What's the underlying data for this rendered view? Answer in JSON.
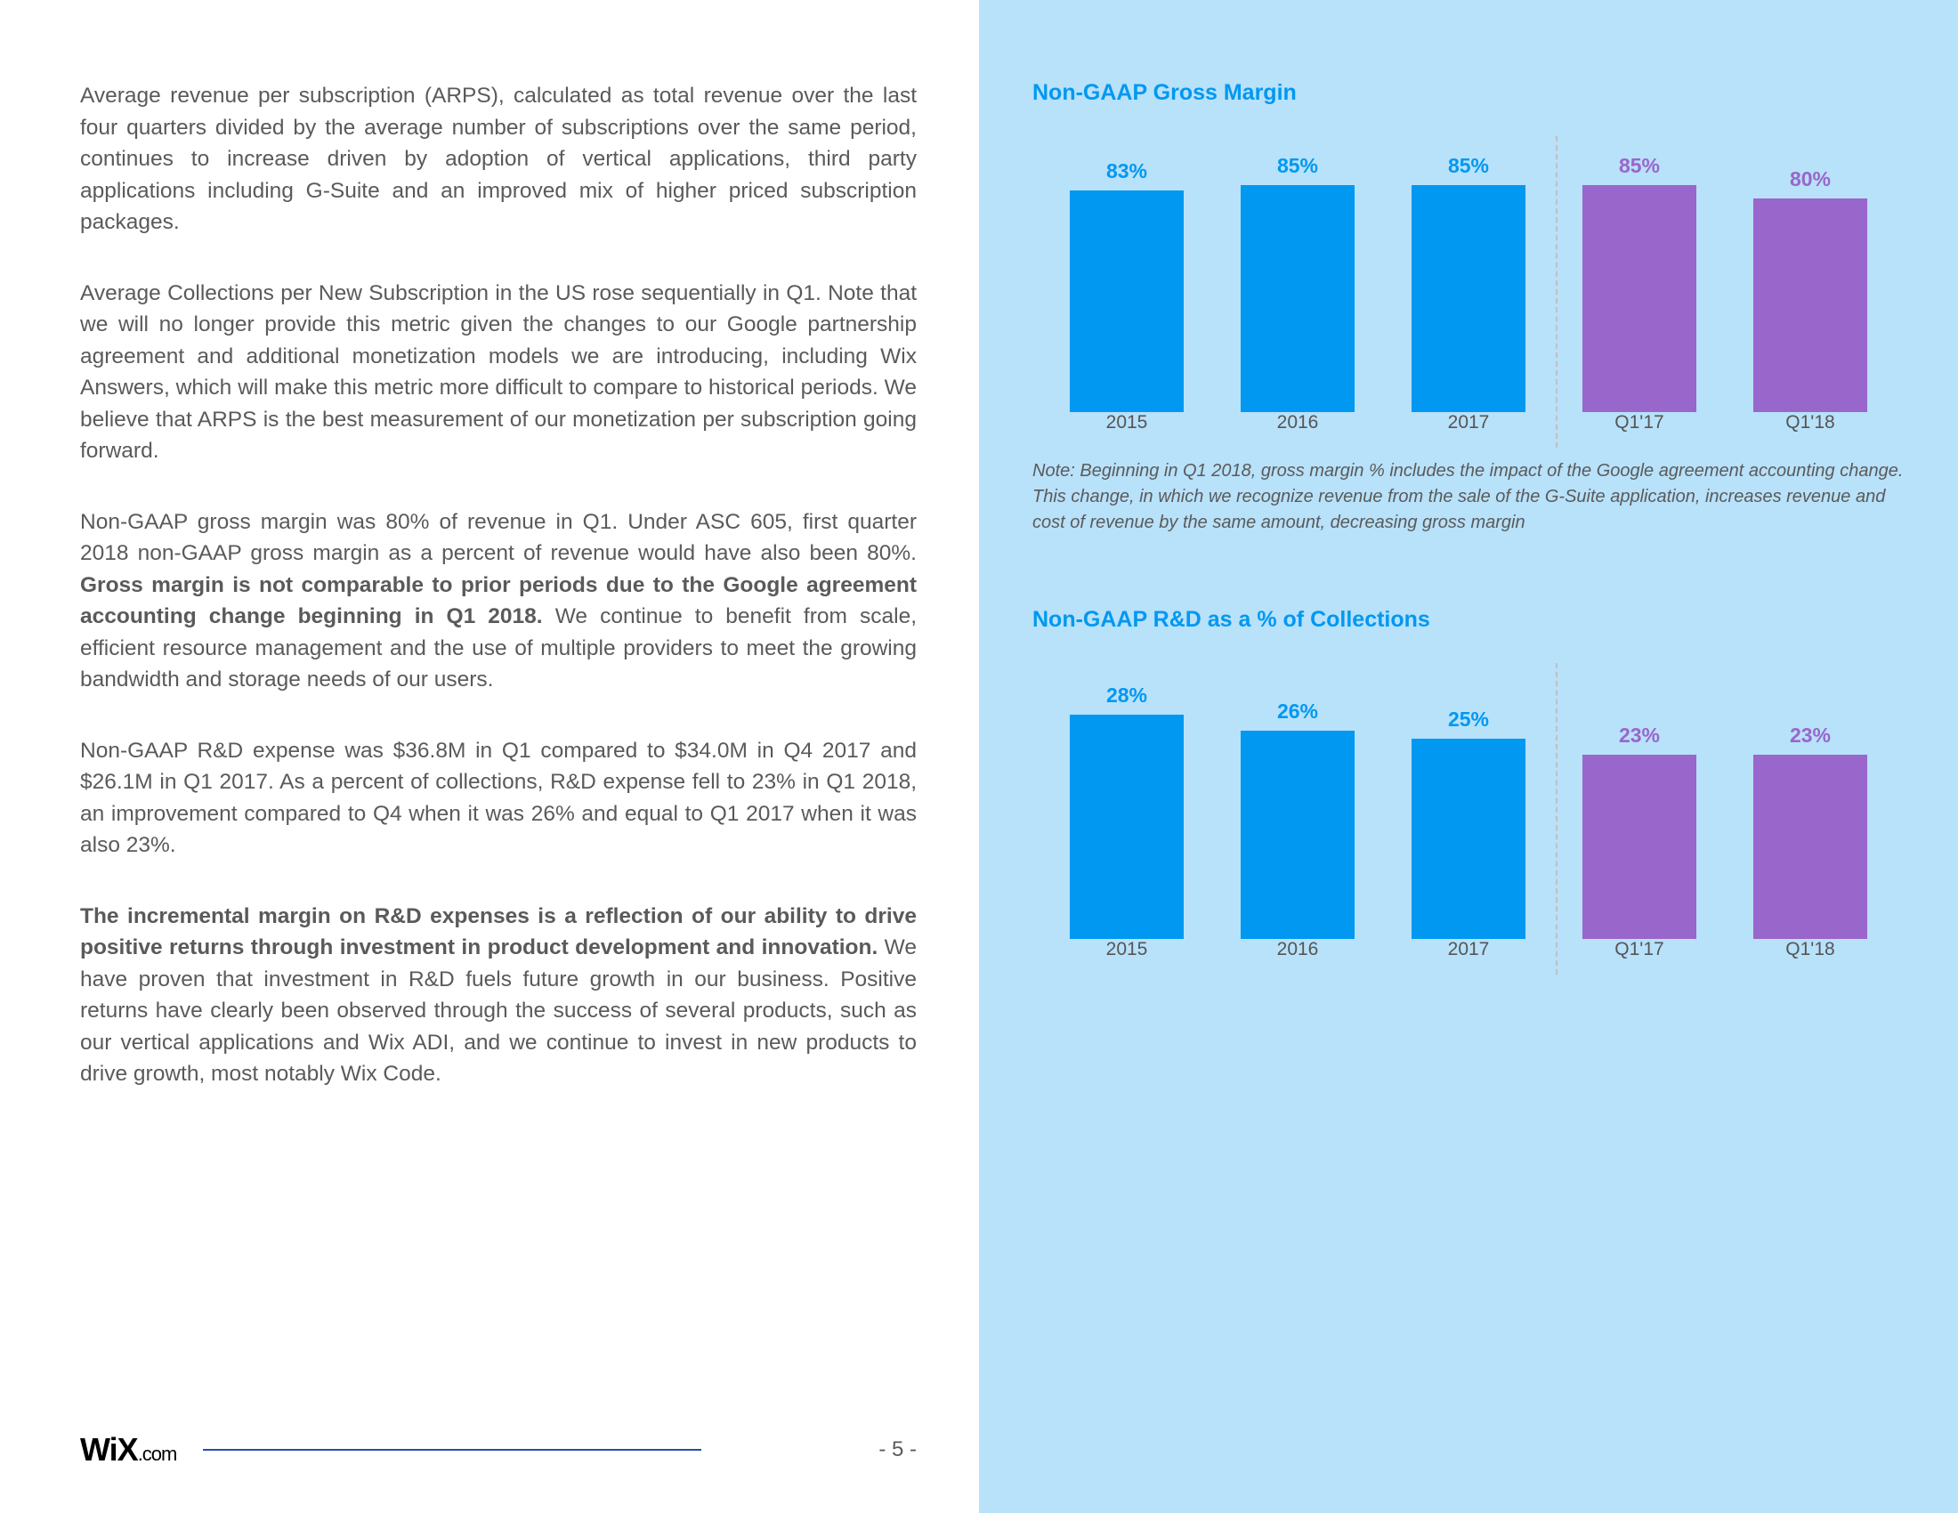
{
  "page": {
    "number": "- 5 -",
    "logo_main": "WiX",
    "logo_suffix": ".com"
  },
  "right_panel_bg": "#b8e1fa",
  "body": {
    "p1": "Average revenue per subscription (ARPS), calculated as total revenue over the last four quarters divided by the average number of subscriptions over the same period, continues to increase driven by adoption of vertical applications, third party applications including G-Suite and an improved mix of higher priced subscription packages.",
    "p2": "Average Collections per New Subscription in the US rose sequentially in Q1. Note that we will no longer provide this metric given the changes to our Google partnership agreement and additional monetization models we are introducing, including Wix Answers, which will make this metric more difficult to compare to historical periods. We believe that ARPS is the best measurement of our monetization per subscription going forward.",
    "p3_a": "Non-GAAP gross margin was 80% of revenue in Q1. Under ASC 605, first quarter 2018 non-GAAP gross margin as a percent of revenue would have also been 80%. ",
    "p3_b": "Gross margin is not comparable to prior periods due to the Google agreement accounting change beginning in Q1 2018.",
    "p3_c": " We continue to benefit from scale, efficient resource management and the use of multiple providers to meet the growing bandwidth and storage needs of our users.",
    "p4": "Non-GAAP R&D expense was $36.8M in Q1 compared to $34.0M in Q4 2017 and $26.1M in Q1 2017. As a percent of collections, R&D expense fell to 23% in Q1 2018, an improvement compared to Q4 when it was 26% and equal to Q1 2017 when it was also 23%.",
    "p5_a": "The incremental margin on R&D expenses is a reflection of our ability to drive positive returns through investment in product development and innovation.",
    "p5_b": " We have proven that investment in R&D fuels future growth in our business. Positive returns have clearly been observed through the success of several products, such as our vertical applications and Wix ADI, and we continue to invest in new products to drive growth, most notably Wix Code."
  },
  "chart1": {
    "type": "bar",
    "title": "Non-GAAP Gross Margin",
    "title_color": "#0098f1",
    "categories": [
      "2015",
      "2016",
      "2017",
      "Q1'17",
      "Q1'18"
    ],
    "labels": [
      "83%",
      "85%",
      "85%",
      "85%",
      "80%"
    ],
    "values": [
      83,
      85,
      85,
      85,
      80
    ],
    "bar_colors": [
      "#0098f1",
      "#0098f1",
      "#0098f1",
      "#9966cc",
      "#9966cc"
    ],
    "label_colors": [
      "#0098f1",
      "#0098f1",
      "#0098f1",
      "#9966cc",
      "#9966cc"
    ],
    "y_max": 90,
    "divider_after_index": 3,
    "note": "Note: Beginning in Q1 2018, gross margin % includes the impact of the Google agreement accounting change. This change, in which we recognize revenue from the sale of the G-Suite application, increases revenue and cost of revenue by the same amount, decreasing gross margin"
  },
  "chart2": {
    "type": "bar",
    "title": "Non-GAAP R&D as a % of Collections",
    "title_color": "#0098f1",
    "categories": [
      "2015",
      "2016",
      "2017",
      "Q1'17",
      "Q1'18"
    ],
    "labels": [
      "28%",
      "26%",
      "25%",
      "23%",
      "23%"
    ],
    "values": [
      28,
      26,
      25,
      23,
      23
    ],
    "bar_colors": [
      "#0098f1",
      "#0098f1",
      "#0098f1",
      "#9966cc",
      "#9966cc"
    ],
    "label_colors": [
      "#0098f1",
      "#0098f1",
      "#0098f1",
      "#9966cc",
      "#9966cc"
    ],
    "y_max": 30,
    "divider_after_index": 3
  }
}
